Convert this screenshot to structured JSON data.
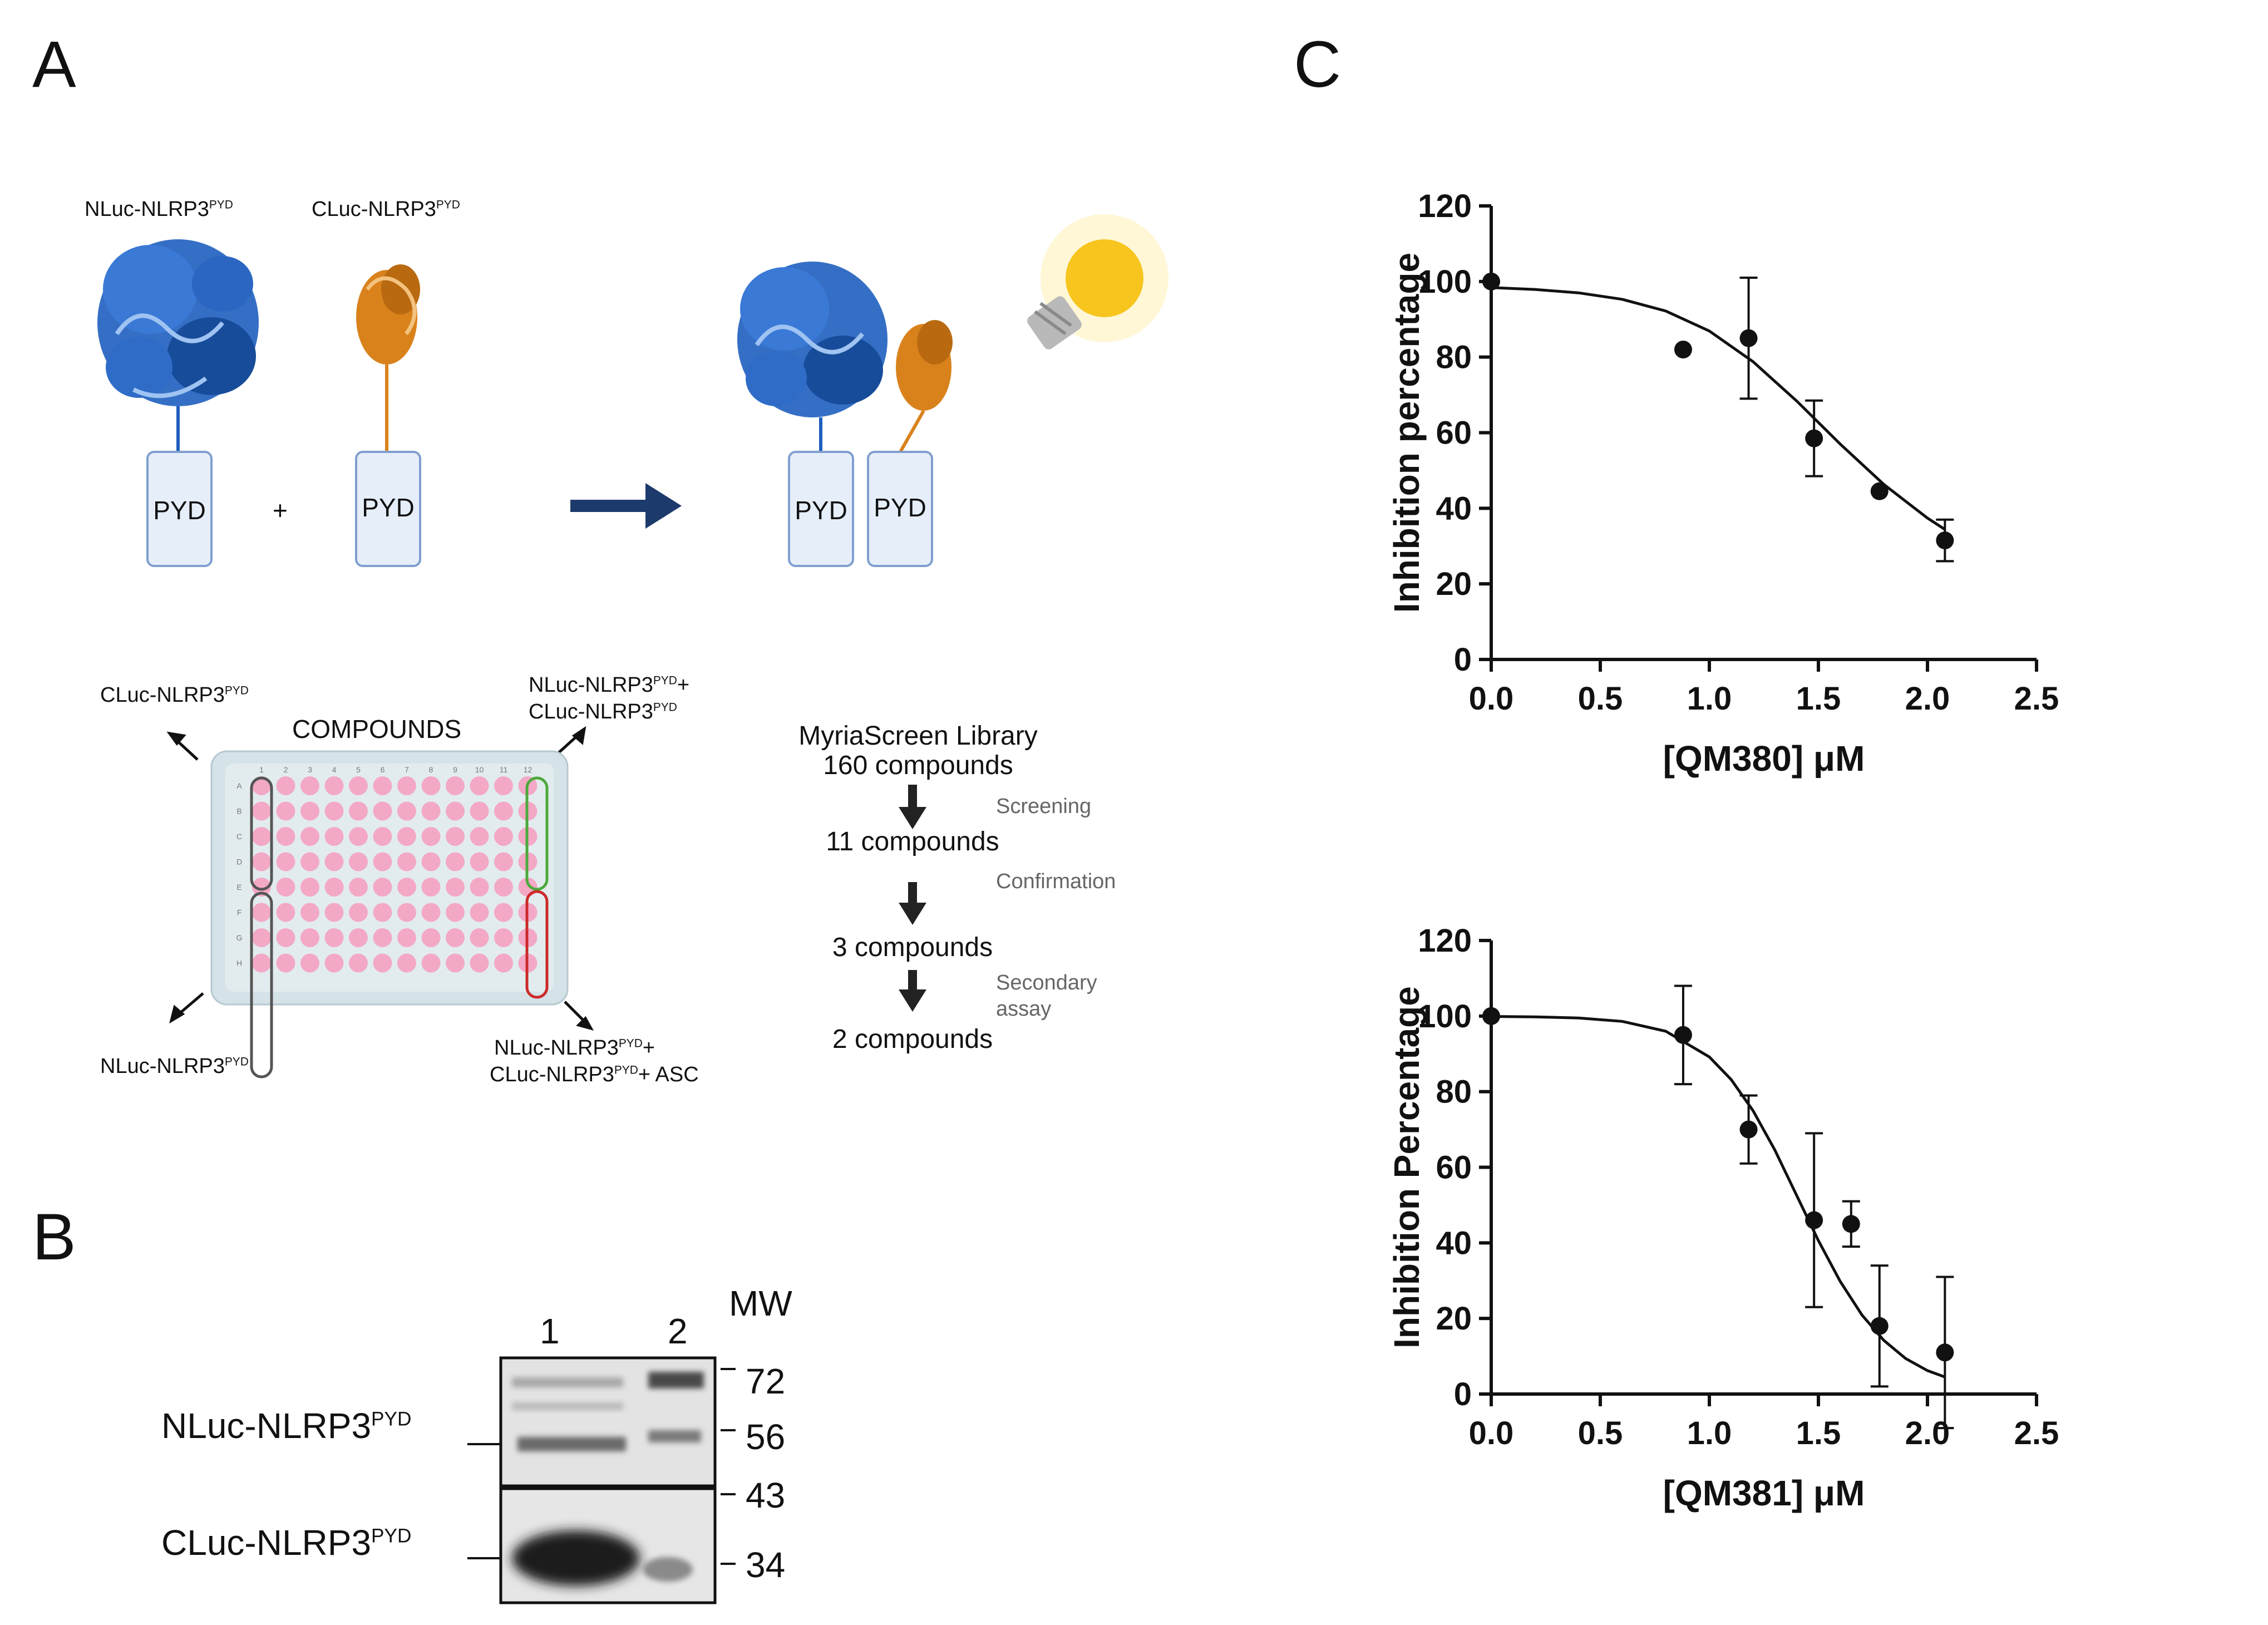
{
  "panels": {
    "a": "A",
    "b": "B",
    "c": "C"
  },
  "panel_a": {
    "top_labels": {
      "nluc": {
        "base": "NLuc-NLRP3",
        "sup": "PYD"
      },
      "cluc": {
        "base": "CLuc-NLRP3",
        "sup": "PYD"
      }
    },
    "pyd": "PYD",
    "plus": "+",
    "plate": {
      "compounds": "COMPOUNDS",
      "cluc_label": {
        "base": "CLuc-NLRP3",
        "sup": "PYD"
      },
      "nluc_label": {
        "base": "NLuc-NLRP3",
        "sup": "PYD"
      },
      "pair_label_1": {
        "base": "NLuc-NLRP3",
        "sup": "PYD",
        "tail": "+"
      },
      "pair_label_2": {
        "base": "CLuc-NLRP3",
        "sup": "PYD"
      },
      "asc_label_1": {
        "base": "NLuc-NLRP3",
        "sup": "PYD",
        "tail": "+"
      },
      "asc_label_2": {
        "base": "CLuc-NLRP3",
        "sup": "PYD",
        "tail": "+ ASC"
      },
      "col_numbers": [
        "1",
        "2",
        "3",
        "4",
        "5",
        "6",
        "7",
        "8",
        "9",
        "10",
        "11",
        "12"
      ],
      "row_letters": [
        "A",
        "B",
        "C",
        "D",
        "E",
        "F",
        "G",
        "H"
      ]
    },
    "flow": {
      "step1_line1": "MyriaScreen Library",
      "step1_line2": "160 compounds",
      "step2": "11 compounds",
      "step3": "3 compounds",
      "step4": "2 compounds",
      "label1": "Screening",
      "label2": "Confirmation",
      "label3_line1": "Secondary",
      "label3_line2": "assay"
    }
  },
  "panel_b": {
    "lane1": "1",
    "lane2": "2",
    "mw": "MW",
    "markers": [
      "72",
      "56",
      "43",
      "34"
    ],
    "nluc": {
      "base": "NLuc-NLRP3",
      "sup": "PYD"
    },
    "cluc": {
      "base": "CLuc-NLRP3",
      "sup": "PYD"
    }
  },
  "colors": {
    "blue_protein": "#1f5fbf",
    "orange_protein": "#d9821c",
    "pyd_box_fill": "#e6eefa",
    "pyd_box_stroke": "#7f9fd0",
    "arrow": "#1c3a6b",
    "well": "#f3a9c6",
    "plate": "#d5e3e8",
    "bulb": "#f7c51e"
  },
  "chart_data": [
    {
      "type": "scatter",
      "title": "",
      "xlabel": "[QM380] μM",
      "ylabel": "Inhibition percentage",
      "xlim": [
        0.0,
        2.5
      ],
      "ylim": [
        0,
        120
      ],
      "xticks": [
        "0.0",
        "0.5",
        "1.0",
        "1.5",
        "2.0",
        "2.5"
      ],
      "yticks": [
        "0",
        "20",
        "40",
        "60",
        "80",
        "100",
        "120"
      ],
      "grid": false,
      "points": [
        {
          "x": 0.0,
          "y": 100,
          "err": 0
        },
        {
          "x": 0.88,
          "y": 82,
          "err": 0
        },
        {
          "x": 1.18,
          "y": 85,
          "err": 16
        },
        {
          "x": 1.48,
          "y": 58.5,
          "err": 10
        },
        {
          "x": 1.78,
          "y": 44.5,
          "err": 0
        },
        {
          "x": 2.08,
          "y": 31.5,
          "err": 5.5
        }
      ],
      "fit": {
        "type": "sigmoidal",
        "x": [
          0.0,
          0.2,
          0.4,
          0.6,
          0.8,
          1.0,
          1.2,
          1.4,
          1.6,
          1.8,
          2.0,
          2.08
        ],
        "y": [
          98.4,
          97.9,
          97.0,
          95.3,
          92.2,
          86.9,
          78.8,
          68.4,
          57.0,
          46.3,
          37.4,
          34.4
        ]
      }
    },
    {
      "type": "scatter",
      "title": "",
      "xlabel": "[QM381] μM",
      "ylabel": "Inhibition Percentage",
      "xlim": [
        0.0,
        2.5
      ],
      "ylim": [
        0,
        120
      ],
      "xticks": [
        "0.0",
        "0.5",
        "1.0",
        "1.5",
        "2.0",
        "2.5"
      ],
      "yticks": [
        "0",
        "20",
        "40",
        "60",
        "80",
        "100",
        "120"
      ],
      "grid": false,
      "points": [
        {
          "x": 0.0,
          "y": 100,
          "err": 0
        },
        {
          "x": 0.88,
          "y": 95,
          "err": 13
        },
        {
          "x": 1.18,
          "y": 70,
          "err": 9
        },
        {
          "x": 1.48,
          "y": 46,
          "err": 23
        },
        {
          "x": 1.65,
          "y": 45,
          "err": 6
        },
        {
          "x": 1.78,
          "y": 18,
          "err": 16
        },
        {
          "x": 2.08,
          "y": 11,
          "err": 20
        }
      ],
      "fit": {
        "type": "sigmoidal",
        "x": [
          0.0,
          0.2,
          0.4,
          0.6,
          0.8,
          1.0,
          1.1,
          1.2,
          1.3,
          1.4,
          1.5,
          1.6,
          1.7,
          1.8,
          1.9,
          2.0,
          2.08
        ],
        "y": [
          99.9,
          99.8,
          99.5,
          98.6,
          96.0,
          89.2,
          83.2,
          75.0,
          64.6,
          52.6,
          40.6,
          29.8,
          20.9,
          14.2,
          9.4,
          6.2,
          4.5
        ]
      }
    }
  ]
}
